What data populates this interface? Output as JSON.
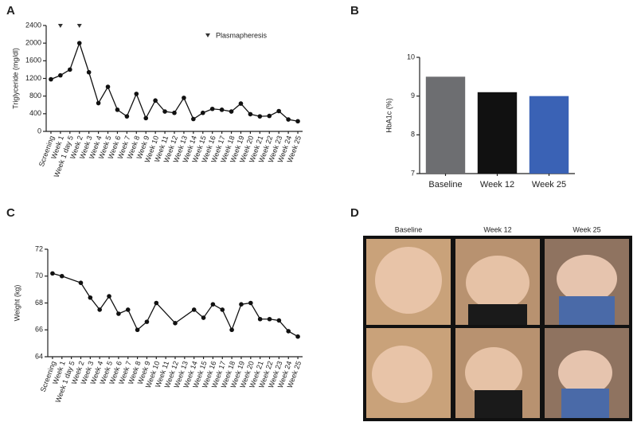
{
  "chart_data": [
    {
      "type": "line",
      "panel_label": "A",
      "ylabel": "Triglyceride (mg/dl)",
      "categories": [
        "Screening",
        "Week 1",
        "Week 1 day 5",
        "Week 2",
        "Week 3",
        "Week 4",
        "Week 5",
        "Week 6",
        "Week 7",
        "Week 8",
        "Week 9",
        "Week 10",
        "Week 11",
        "Week 12",
        "Week 13",
        "Week 14",
        "Week 15",
        "Week 16",
        "Week 17",
        "Week 18",
        "Week 19",
        "Week 20",
        "Week 21",
        "Week 22",
        "Week 23",
        "Week 24",
        "Week 25"
      ],
      "values": [
        1180,
        1270,
        1400,
        2000,
        1340,
        640,
        1010,
        490,
        340,
        850,
        300,
        700,
        450,
        420,
        760,
        280,
        420,
        510,
        490,
        450,
        630,
        390,
        340,
        350,
        460,
        270,
        230
      ],
      "color": "#111111",
      "ylim": [
        0,
        2400
      ],
      "yticks": [
        0,
        400,
        800,
        1200,
        1600,
        2000,
        2400
      ],
      "annotation": {
        "text": "Plasmapheresis",
        "categories": [
          "Week 1",
          "Week 2"
        ]
      }
    },
    {
      "type": "bar",
      "panel_label": "B",
      "ylabel": "HbA1c (%)",
      "categories": [
        "Baseline",
        "Week 12",
        "Week 25"
      ],
      "values": [
        9.5,
        9.1,
        9.0
      ],
      "colors": [
        "#6d6e71",
        "#111111",
        "#3a62b5"
      ],
      "ylim": [
        7,
        10
      ],
      "yticks": [
        7,
        8,
        9,
        10
      ]
    },
    {
      "type": "line",
      "panel_label": "C",
      "ylabel": "Weight (kg)",
      "categories": [
        "Screening",
        "Week 1",
        "Week 1 day 5",
        "Week 2",
        "Week 3",
        "Week 4",
        "Week 5",
        "Week 6",
        "Week 7",
        "Week 8",
        "Week 9",
        "Week 10",
        "Week 11",
        "Week 12",
        "Week 13",
        "Week 14",
        "Week 15",
        "Week 16",
        "Week 17",
        "Week 18",
        "Week 19",
        "Week 20",
        "Week 21",
        "Week 22",
        "Week 23",
        "Week 24",
        "Week 25"
      ],
      "values": [
        70.2,
        70.0,
        null,
        69.5,
        68.4,
        67.5,
        68.5,
        67.2,
        67.5,
        66.0,
        66.6,
        68.0,
        null,
        66.5,
        null,
        67.5,
        66.9,
        67.9,
        67.5,
        66.0,
        67.9,
        68.0,
        66.8,
        66.8,
        66.7,
        65.9,
        65.5
      ],
      "connect_gaps": true,
      "color": "#111111",
      "ylim": [
        64,
        72
      ],
      "yticks": [
        64,
        66,
        68,
        70,
        72
      ]
    }
  ],
  "panel_d": {
    "panel_label": "D",
    "columns": [
      "Baseline",
      "Week 12",
      "Week 25"
    ]
  }
}
